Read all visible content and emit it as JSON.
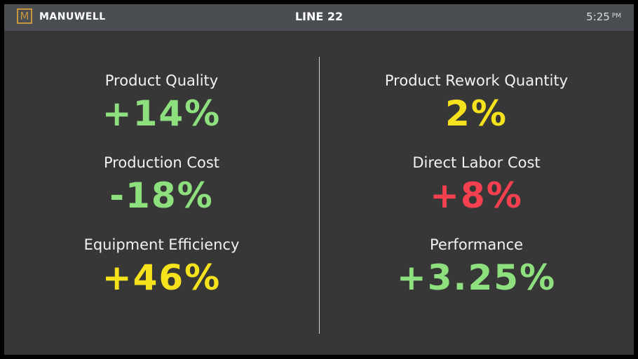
{
  "header": {
    "logo_letter": "M",
    "brand": "MANUWELL",
    "title": "LINE 22",
    "time": "5:25",
    "ampm": "PM"
  },
  "colors": {
    "background": "#373737",
    "header": "#4a4e52",
    "logo_accent": "#c9963f",
    "good": "#8ee07f",
    "warning": "#f6e21c",
    "bad": "#f5404f"
  },
  "metrics_left": [
    {
      "label": "Product Quality",
      "value": "+14%",
      "status": "good"
    },
    {
      "label": "Production Cost",
      "value": "-18%",
      "status": "good"
    },
    {
      "label": "Equipment Efficiency",
      "value": "+46%",
      "status": "warning"
    }
  ],
  "metrics_right": [
    {
      "label": "Product Rework Quantity",
      "value": "2%",
      "status": "warning"
    },
    {
      "label": "Direct Labor Cost",
      "value": "+8%",
      "status": "bad"
    },
    {
      "label": "Performance",
      "value": "+3.25%",
      "status": "good"
    }
  ]
}
